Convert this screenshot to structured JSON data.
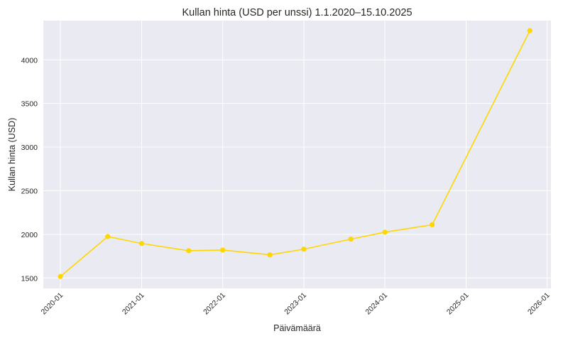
{
  "chart_data": {
    "type": "line",
    "title": "Kullan hinta (USD per unssi) 1.1.2020–15.10.2025",
    "xlabel": "Päivämäärä",
    "ylabel": "Kullan hinta (USD)",
    "x": [
      "2020-01-01",
      "2020-08-01",
      "2021-01-01",
      "2021-08-01",
      "2022-01-01",
      "2022-08-01",
      "2023-01-01",
      "2023-08-01",
      "2024-01-01",
      "2024-08-01",
      "2025-10-15"
    ],
    "values": [
      1517,
      1975,
      1895,
      1812,
      1820,
      1765,
      1830,
      1945,
      2025,
      2110,
      4335
    ],
    "xlim": [
      "2019-10-16",
      "2026-01-18"
    ],
    "ylim": [
      1380,
      4450
    ],
    "yticks": [
      1500,
      2000,
      2500,
      3000,
      3500,
      4000
    ],
    "xticks": [
      "2020-01",
      "2021-01",
      "2022-01",
      "2023-01",
      "2024-01",
      "2025-01",
      "2026-01"
    ],
    "grid": true,
    "colors": {
      "line": "#FFD700",
      "background": "#EAEAF2",
      "grid": "#FFFFFF"
    }
  }
}
